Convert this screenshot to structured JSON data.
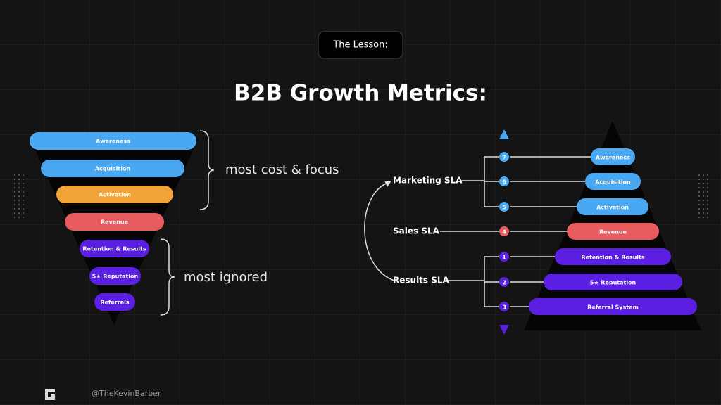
{
  "badge": "The Lesson:",
  "title": "B2B Growth Metrics:",
  "funnel": {
    "stages": [
      {
        "label": "Awareness",
        "color": "#4aa8f2"
      },
      {
        "label": "Acquisition",
        "color": "#4aa8f2"
      },
      {
        "label": "Activation",
        "color": "#f2a337"
      },
      {
        "label": "Revenue",
        "color": "#e85c5f"
      },
      {
        "label": "Retention & Results",
        "color": "#5a1fe0"
      },
      {
        "label": "5★ Reputation",
        "color": "#5a1fe0"
      },
      {
        "label": "Referrals",
        "color": "#5a1fe0"
      }
    ],
    "notes": [
      "most cost & focus",
      "most ignored"
    ]
  },
  "pyramid": {
    "stages": [
      {
        "step": "7",
        "label": "Awareness",
        "color": "#4aa8f2"
      },
      {
        "step": "6",
        "label": "Acquisition",
        "color": "#4aa8f2"
      },
      {
        "step": "5",
        "label": "Activation",
        "color": "#4aa8f2"
      },
      {
        "step": "4",
        "label": "Revenue",
        "color": "#e85c5f"
      },
      {
        "step": "1",
        "label": "Retention & Results",
        "color": "#5a1fe0"
      },
      {
        "step": "2",
        "label": "5★ Reputation",
        "color": "#5a1fe0"
      },
      {
        "step": "3",
        "label": "Referral System",
        "color": "#5a1fe0"
      }
    ],
    "sla": [
      "Marketing SLA",
      "Sales SLA",
      "Results SLA"
    ]
  },
  "footer": {
    "handle": "@TheKevinBarber"
  }
}
